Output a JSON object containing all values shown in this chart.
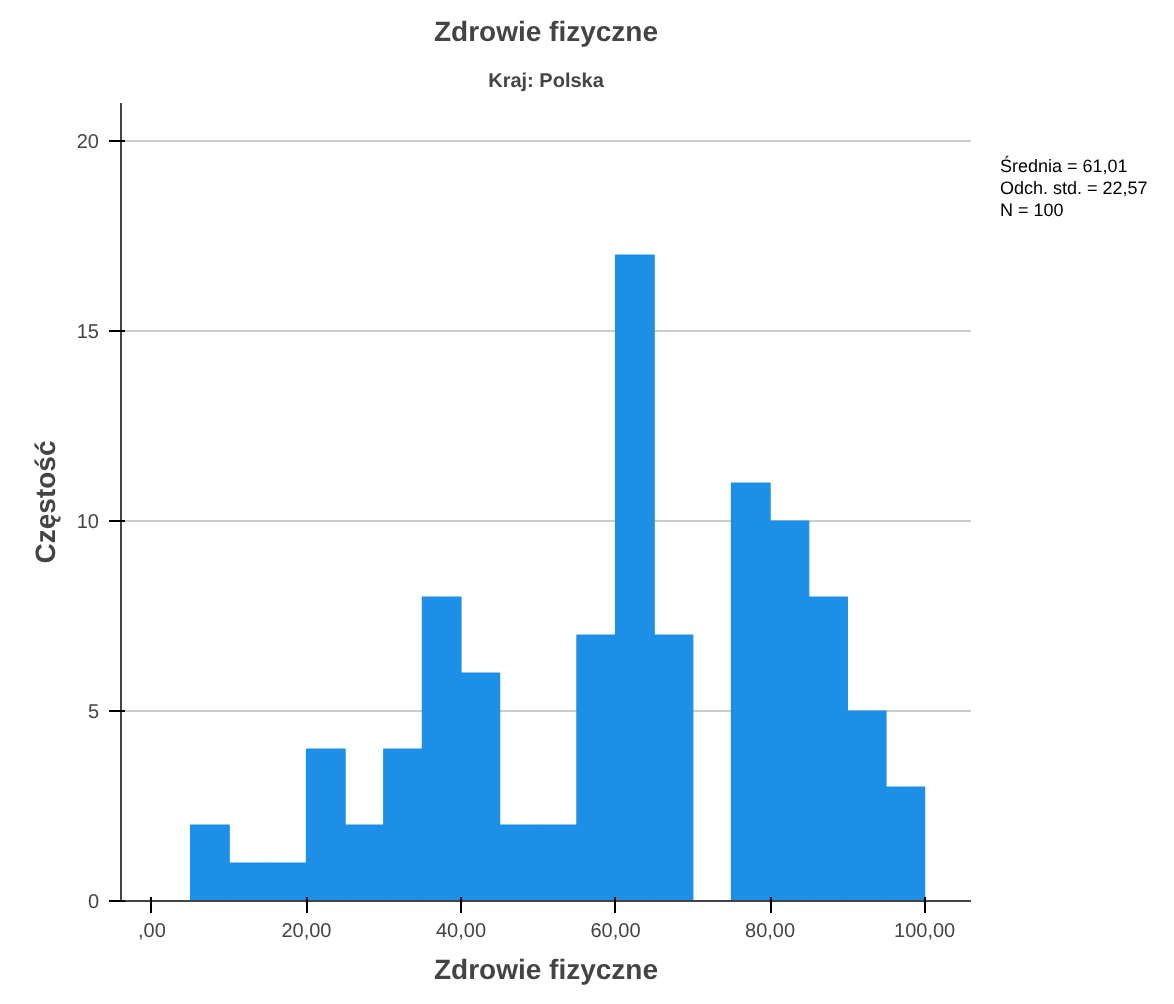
{
  "chart_data": {
    "type": "histogram",
    "title": "Zdrowie fizyczne",
    "subtitle": "Kraj: Polska",
    "xlabel": "Zdrowie fizyczne",
    "ylabel": "Częstość",
    "bins": [
      5,
      10,
      15,
      20,
      25,
      30,
      35,
      40,
      45,
      50,
      55,
      60,
      65,
      70,
      75,
      80,
      85,
      90,
      95,
      100
    ],
    "values": [
      2,
      1,
      1,
      4,
      2,
      4,
      8,
      6,
      2,
      2,
      7,
      17,
      7,
      0,
      11,
      10,
      8,
      5,
      3
    ],
    "color": "#1e8fe6",
    "xlim": [
      -4,
      106
    ],
    "ylim": [
      0,
      21
    ],
    "xticks": [
      {
        "value": 0,
        "label": ",00"
      },
      {
        "value": 20,
        "label": "20,00"
      },
      {
        "value": 40,
        "label": "40,00"
      },
      {
        "value": 60,
        "label": "60,00"
      },
      {
        "value": 80,
        "label": "80,00"
      },
      {
        "value": 100,
        "label": "100,00"
      }
    ],
    "yticks": [
      0,
      5,
      10,
      15,
      20
    ],
    "grid": "y",
    "annotations": [
      "Średnia = 61,01",
      "Odch. std. = 22,57",
      "N = 100"
    ]
  }
}
